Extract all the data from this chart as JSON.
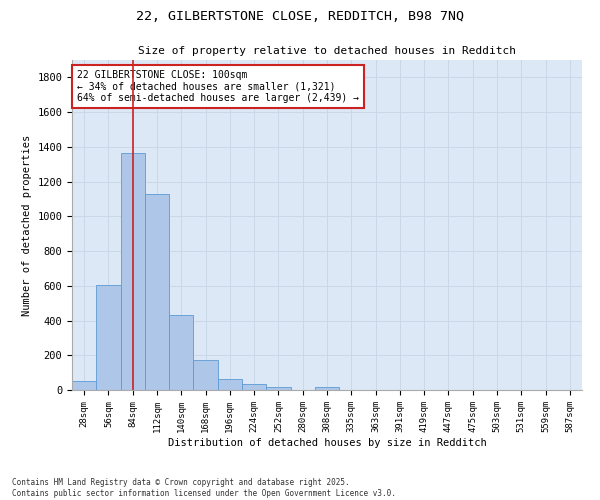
{
  "title_line1": "22, GILBERTSTONE CLOSE, REDDITCH, B98 7NQ",
  "title_line2": "Size of property relative to detached houses in Redditch",
  "xlabel": "Distribution of detached houses by size in Redditch",
  "ylabel": "Number of detached properties",
  "bar_color": "#aec6e8",
  "bar_edge_color": "#5b9bd5",
  "grid_color": "#c8d8e8",
  "background_color": "#dce8f5",
  "bar_labels": [
    "28sqm",
    "56sqm",
    "84sqm",
    "112sqm",
    "140sqm",
    "168sqm",
    "196sqm",
    "224sqm",
    "252sqm",
    "280sqm",
    "308sqm",
    "335sqm",
    "363sqm",
    "391sqm",
    "419sqm",
    "447sqm",
    "475sqm",
    "503sqm",
    "531sqm",
    "559sqm",
    "587sqm"
  ],
  "bar_values": [
    50,
    605,
    1365,
    1130,
    430,
    170,
    65,
    35,
    15,
    0,
    20,
    0,
    0,
    0,
    0,
    0,
    0,
    0,
    0,
    0,
    0
  ],
  "ylim": [
    0,
    1900
  ],
  "yticks": [
    0,
    200,
    400,
    600,
    800,
    1000,
    1200,
    1400,
    1600,
    1800
  ],
  "property_line_x": 2,
  "property_line_color": "#cc2222",
  "annotation_text": "22 GILBERTSTONE CLOSE: 100sqm\n← 34% of detached houses are smaller (1,321)\n64% of semi-detached houses are larger (2,439) →",
  "annotation_box_color": "#cc2222",
  "footer_line1": "Contains HM Land Registry data © Crown copyright and database right 2025.",
  "footer_line2": "Contains public sector information licensed under the Open Government Licence v3.0.",
  "fig_bg_color": "#ffffff"
}
